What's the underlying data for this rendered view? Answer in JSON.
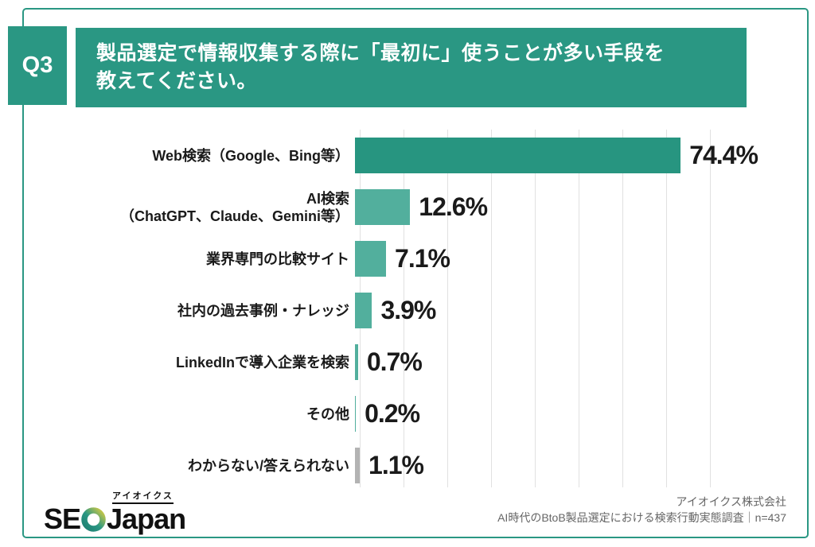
{
  "header": {
    "badge": "Q3",
    "question_line1": "製品選定で情報収集する際に「最初に」使うことが多い手段を",
    "question_line2": "教えてください。"
  },
  "chart_data": {
    "type": "bar",
    "orientation": "horizontal",
    "title": "製品選定で情報収集する際に「最初に」使うことが多い手段を教えてください。",
    "categories": [
      "Web検索（Google、Bing等）",
      "AI検索\n（ChatGPT、Claude、Gemini等）",
      "業界専門の比較サイト",
      "社内の過去事例・ナレッジ",
      "LinkedInで導入企業を検索",
      "その他",
      "わからない/答えられない"
    ],
    "values": [
      74.4,
      12.6,
      7.1,
      3.9,
      0.7,
      0.2,
      1.1
    ],
    "value_labels": [
      "74.4%",
      "12.6%",
      "7.1%",
      "3.9%",
      "0.7%",
      "0.2%",
      "1.1%"
    ],
    "xlim": [
      0,
      80
    ],
    "gridline_interval_pct": 10,
    "grid": "vertical-lines",
    "legend": "none",
    "bar_colors": [
      "#279580",
      "#52AF9D",
      "#52AF9D",
      "#52AF9D",
      "#52AF9D",
      "#52AF9D",
      "#B3B3B3"
    ]
  },
  "footer": {
    "logo_kana": "アイオイクス",
    "logo_se": "SE",
    "logo_japan": "Japan",
    "source_line1": "アイオイクス株式会社",
    "source_line2": "AI時代のBtoB製品選定における検索行動実態調査｜n=437"
  },
  "colors": {
    "accent_teal_dark": "#279580",
    "accent_teal_light": "#52AF9D",
    "header_teal": "#2A9783",
    "gray_bar": "#B3B3B3",
    "gridline": "#E1E1E1",
    "text_black": "#1A1A1A",
    "text_gray": "#666666",
    "card_border": "#2A9783"
  }
}
